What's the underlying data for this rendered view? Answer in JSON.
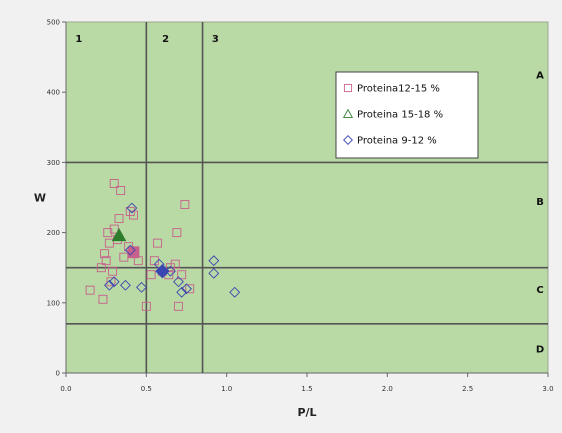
{
  "chart_data": {
    "type": "scatter",
    "xlabel": "P/L",
    "ylabel": "W",
    "xlim": [
      0,
      3
    ],
    "ylim": [
      0,
      500
    ],
    "x_ticks": [
      "0.0",
      "0.5",
      "1.0",
      "1.5",
      "2.0",
      "2.5",
      "3.0"
    ],
    "y_ticks": [
      "0",
      "100",
      "200",
      "300",
      "400",
      "500"
    ],
    "x_tick_values": [
      0,
      0.5,
      1.0,
      1.5,
      2.0,
      2.5,
      3.0
    ],
    "y_tick_values": [
      0,
      100,
      200,
      300,
      400,
      500
    ],
    "vertical_lines": [
      0.5,
      0.85
    ],
    "horizontal_lines": [
      300,
      150,
      70
    ],
    "column_labels": [
      {
        "text": "1",
        "x": 0.08
      },
      {
        "text": "2",
        "x": 0.62
      },
      {
        "text": "3",
        "x": 0.93
      }
    ],
    "row_labels": [
      {
        "text": "A",
        "y": 425
      },
      {
        "text": "B",
        "y": 245
      },
      {
        "text": "C",
        "y": 120
      },
      {
        "text": "D",
        "y": 35
      }
    ],
    "grid": false,
    "legend_position": "top-right",
    "background_color": "#b9d9a5",
    "line_color": "#555555",
    "series": [
      {
        "name": "Proteina12-15 %",
        "marker": "square",
        "color": "#c8608c",
        "points": [
          [
            0.15,
            118
          ],
          [
            0.22,
            150
          ],
          [
            0.23,
            105
          ],
          [
            0.24,
            170
          ],
          [
            0.25,
            160
          ],
          [
            0.26,
            200
          ],
          [
            0.27,
            185
          ],
          [
            0.28,
            130
          ],
          [
            0.29,
            145
          ],
          [
            0.3,
            205
          ],
          [
            0.3,
            270
          ],
          [
            0.32,
            190
          ],
          [
            0.33,
            220
          ],
          [
            0.34,
            260
          ],
          [
            0.36,
            165
          ],
          [
            0.39,
            180
          ],
          [
            0.4,
            230
          ],
          [
            0.42,
            225
          ],
          [
            0.45,
            160
          ],
          [
            0.5,
            95
          ],
          [
            0.53,
            140
          ],
          [
            0.55,
            160
          ],
          [
            0.57,
            185
          ],
          [
            0.6,
            145
          ],
          [
            0.64,
            140
          ],
          [
            0.65,
            150
          ],
          [
            0.68,
            155
          ],
          [
            0.69,
            200
          ],
          [
            0.7,
            95
          ],
          [
            0.72,
            140
          ],
          [
            0.74,
            240
          ],
          [
            0.77,
            120
          ]
        ],
        "mean": [
          0.42,
          172
        ]
      },
      {
        "name": "Proteina 15-18 %",
        "marker": "triangle",
        "color": "#2d7d2d",
        "points": [],
        "mean": [
          0.33,
          196
        ]
      },
      {
        "name": "Proteina 9-12 %",
        "marker": "diamond",
        "color": "#3848b0",
        "points": [
          [
            0.27,
            125
          ],
          [
            0.3,
            130
          ],
          [
            0.37,
            125
          ],
          [
            0.4,
            175
          ],
          [
            0.41,
            235
          ],
          [
            0.47,
            122
          ],
          [
            0.58,
            155
          ],
          [
            0.65,
            145
          ],
          [
            0.7,
            130
          ],
          [
            0.72,
            115
          ],
          [
            0.75,
            120
          ],
          [
            0.92,
            160
          ],
          [
            0.92,
            142
          ],
          [
            1.05,
            115
          ]
        ],
        "mean": [
          0.6,
          145
        ]
      }
    ]
  }
}
